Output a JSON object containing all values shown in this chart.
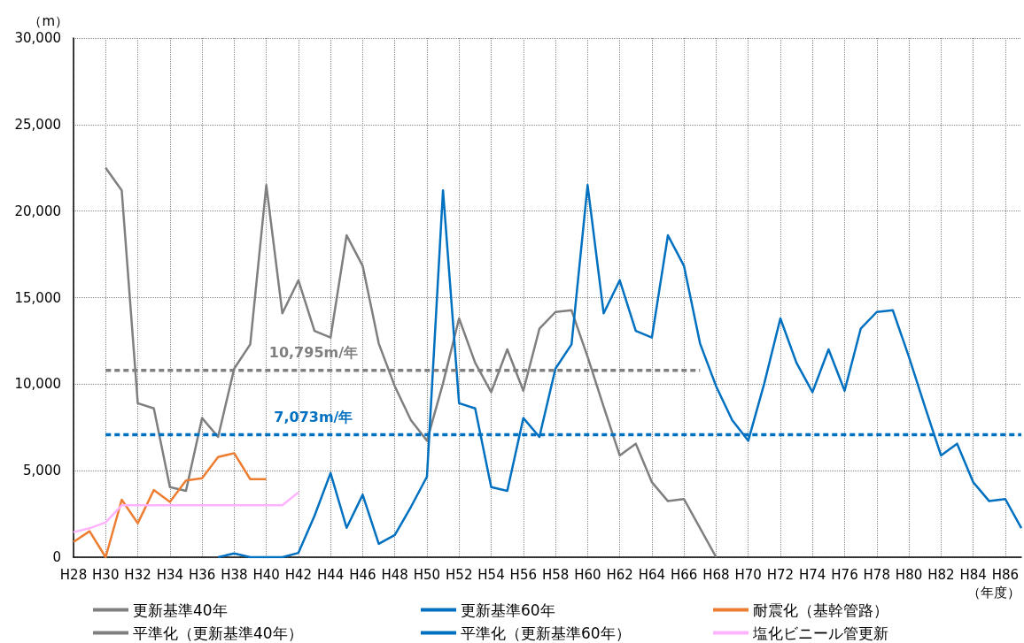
{
  "chart_data": {
    "type": "line",
    "ylabel": "（m）",
    "xlabel": "（年度）",
    "categories": [
      "H28",
      null,
      "H30",
      null,
      "H32",
      null,
      "H34",
      null,
      "H36",
      null,
      "H38",
      null,
      "H40",
      null,
      "H42",
      null,
      "H44",
      null,
      "H46",
      null,
      "H48",
      null,
      "H50",
      null,
      "H52",
      null,
      "H54",
      null,
      "H56",
      null,
      "H58",
      null,
      "H60",
      null,
      "H62",
      null,
      "H64",
      null,
      "H66",
      null,
      "H68",
      null,
      "H70",
      null,
      "H72",
      null,
      "H74",
      null,
      "H76",
      null,
      "H78",
      null,
      "H80",
      null,
      "H82",
      null,
      "H84",
      null,
      "H86",
      null
    ],
    "series": [
      {
        "name": "更新基準40年",
        "color": "#7f7f7f",
        "line_style": "solid",
        "values": [
          null,
          null,
          22500,
          21200,
          8900,
          8600,
          4050,
          3830,
          8040,
          6950,
          10900,
          12300,
          21500,
          14090,
          16000,
          13080,
          12690,
          18600,
          16830,
          12350,
          9880,
          7920,
          6730,
          10050,
          13800,
          11240,
          9540,
          12010,
          9620,
          13200,
          14170,
          14270,
          11580,
          8690,
          5880,
          6560,
          4340,
          3240,
          3360,
          1680,
          0,
          null,
          null,
          null,
          null,
          null,
          null,
          null,
          null,
          null,
          null,
          null,
          null,
          null,
          null,
          null,
          null,
          null,
          null,
          null
        ]
      },
      {
        "name": "更新基準60年",
        "color": "#0070c0",
        "line_style": "solid",
        "values": [
          null,
          null,
          null,
          null,
          null,
          null,
          null,
          null,
          null,
          0,
          220,
          0,
          0,
          0,
          250,
          2390,
          4860,
          1700,
          3610,
          770,
          1280,
          2900,
          4650,
          21200,
          8900,
          8600,
          4050,
          3830,
          8040,
          6950,
          10900,
          12300,
          21500,
          14090,
          16000,
          13080,
          12690,
          18600,
          16830,
          12350,
          9880,
          7920,
          6730,
          10050,
          13800,
          11240,
          9540,
          12010,
          9620,
          13200,
          14170,
          14270,
          11580,
          8690,
          5880,
          6560,
          4340,
          3240,
          3360,
          1680
        ]
      },
      {
        "name": "耐震化（基幹管路）",
        "color": "#ed7d31",
        "line_style": "solid",
        "values": [
          880,
          1500,
          0,
          3320,
          1960,
          3880,
          3200,
          4430,
          4560,
          5790,
          6010,
          4510,
          4510,
          null,
          null,
          null,
          null,
          null,
          null,
          null,
          null,
          null,
          null,
          null,
          null,
          null,
          null,
          null,
          null,
          null,
          null,
          null,
          null,
          null,
          null,
          null,
          null,
          null,
          null,
          null,
          null,
          null,
          null,
          null,
          null,
          null,
          null,
          null,
          null,
          null,
          null,
          null,
          null,
          null,
          null,
          null,
          null,
          null,
          null,
          null
        ]
      },
      {
        "name": "平準化（更新基準40年）",
        "color": "#7f7f7f",
        "line_style": "dashed",
        "values": [
          null,
          null,
          10795,
          10795,
          10795,
          10795,
          10795,
          10795,
          10795,
          10795,
          10795,
          10795,
          10795,
          10795,
          10795,
          10795,
          10795,
          10795,
          10795,
          10795,
          10795,
          10795,
          10795,
          10795,
          10795,
          10795,
          10795,
          10795,
          10795,
          10795,
          10795,
          10795,
          10795,
          10795,
          10795,
          10795,
          10795,
          10795,
          10795,
          10795,
          null,
          null,
          null,
          null,
          null,
          null,
          null,
          null,
          null,
          null,
          null,
          null,
          null,
          null,
          null,
          null,
          null,
          null,
          null,
          null
        ]
      },
      {
        "name": "平準化（更新基準60年）",
        "color": "#0070c0",
        "line_style": "dashed",
        "values": [
          null,
          null,
          7073,
          7073,
          7073,
          7073,
          7073,
          7073,
          7073,
          7073,
          7073,
          7073,
          7073,
          7073,
          7073,
          7073,
          7073,
          7073,
          7073,
          7073,
          7073,
          7073,
          7073,
          7073,
          7073,
          7073,
          7073,
          7073,
          7073,
          7073,
          7073,
          7073,
          7073,
          7073,
          7073,
          7073,
          7073,
          7073,
          7073,
          7073,
          7073,
          7073,
          7073,
          7073,
          7073,
          7073,
          7073,
          7073,
          7073,
          7073,
          7073,
          7073,
          7073,
          7073,
          7073,
          7073,
          7073,
          7073,
          7073,
          7073
        ]
      },
      {
        "name": "塩化ビニール管更新",
        "color": "#ffb3ff",
        "line_style": "solid",
        "values": [
          1450,
          1670,
          2010,
          3000,
          3000,
          3000,
          3000,
          3000,
          3000,
          3000,
          3000,
          3000,
          3000,
          3000,
          3750,
          null,
          null,
          null,
          null,
          null,
          null,
          null,
          null,
          null,
          null,
          null,
          null,
          null,
          null,
          null,
          null,
          null,
          null,
          null,
          null,
          null,
          null,
          null,
          null,
          null,
          null,
          null,
          null,
          null,
          null,
          null,
          null,
          null,
          null,
          null,
          null,
          null,
          null,
          null,
          null,
          null,
          null,
          null,
          null,
          null
        ]
      }
    ],
    "ylim": [
      0,
      30000
    ],
    "yticks": [
      {
        "value": 0,
        "label": "0"
      },
      {
        "value": 5000,
        "label": "5,000"
      },
      {
        "value": 10000,
        "label": "10,000"
      },
      {
        "value": 15000,
        "label": "15,000"
      },
      {
        "value": 20000,
        "label": "20,000"
      },
      {
        "value": 25000,
        "label": "25,000"
      },
      {
        "value": 30000,
        "label": "30,000"
      }
    ],
    "annotations": [
      {
        "text": "10,795m/年",
        "x": "H42",
        "y": 10795
      },
      {
        "text": "7,073m/年",
        "x": "H42",
        "y": 7073
      }
    ],
    "grid": true,
    "legend": "bottom",
    "marker": "none"
  }
}
